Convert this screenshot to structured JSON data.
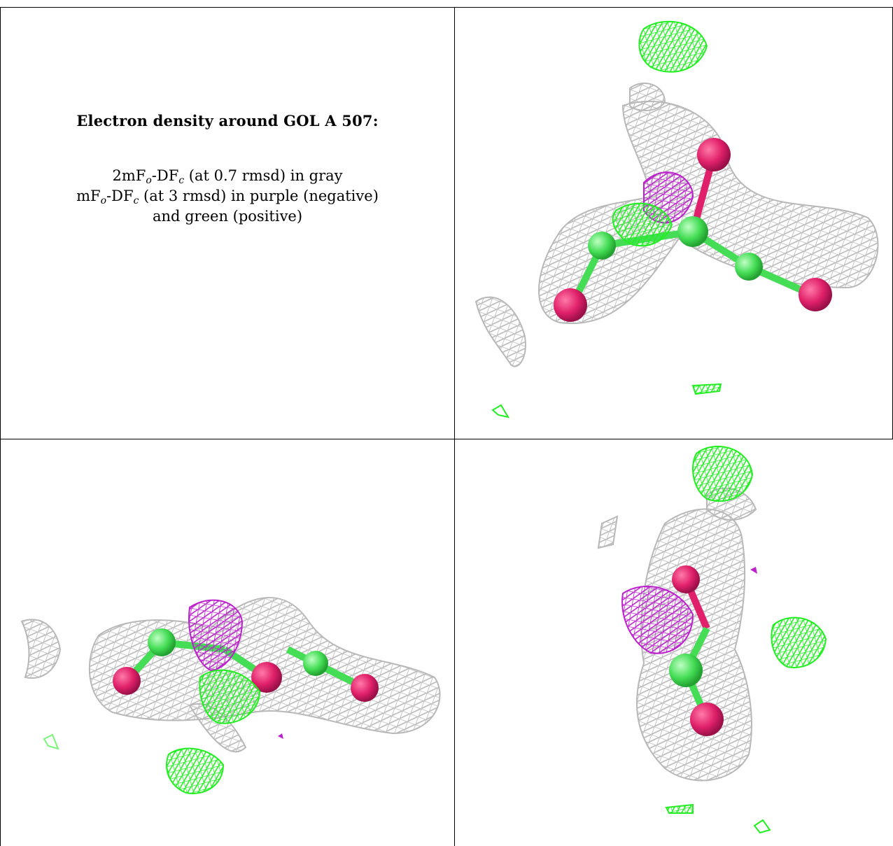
{
  "caption": {
    "title": "Electron density around GOL A 507:",
    "map1": {
      "prefix": "2mF",
      "sub1": "o",
      "mid": "-DF",
      "sub2": "c",
      "suffix": " (at 0.7 rmsd) in gray"
    },
    "map2": {
      "prefix": "mF",
      "sub1": "o",
      "mid": "-DF",
      "sub2": "c",
      "suffix": " (at 3 rmsd) in purple (negative)"
    },
    "map2_cont": "and green (positive)"
  },
  "colors": {
    "gray_mesh": "#b8b8b8",
    "green_mesh": "#22ee22",
    "purple_mesh": "#bb22cc",
    "oxygen": "#e0206a",
    "carbon": "#44dd55"
  },
  "panels": [
    {
      "id": "view-1",
      "icon": "gol-density-mesh"
    },
    {
      "id": "view-2",
      "icon": "gol-density-mesh"
    },
    {
      "id": "view-3",
      "icon": "gol-density-mesh"
    }
  ]
}
